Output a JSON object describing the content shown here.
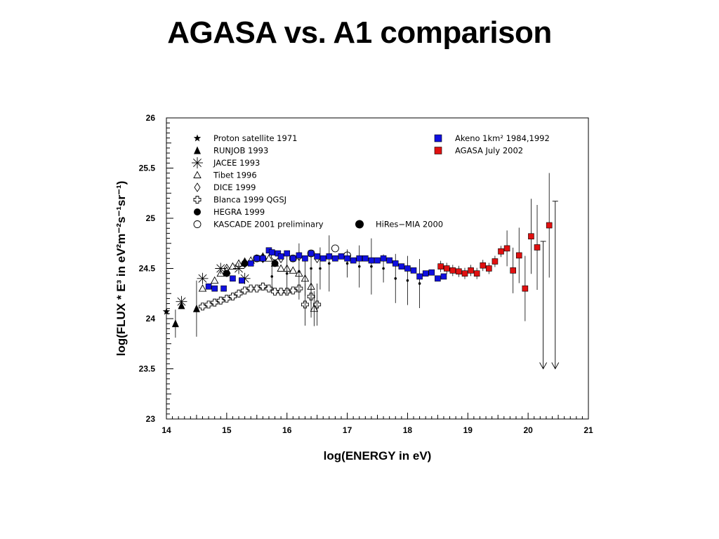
{
  "page": {
    "title": "AGASA vs. A1 comparison"
  },
  "chart_data": {
    "type": "scatter",
    "xlabel": "log(ENERGY in eV)",
    "ylabel": "log(FLUX * E³ in eV²m⁻²s⁻¹sr⁻¹)",
    "xlim": [
      14,
      21
    ],
    "ylim": [
      23,
      26
    ],
    "x_ticks": [
      "14",
      "15",
      "16",
      "17",
      "18",
      "19",
      "20",
      "21"
    ],
    "y_ticks": [
      "23",
      "23.5",
      "24",
      "24.5",
      "25",
      "25.5",
      "26"
    ],
    "grid": false,
    "legend_left": [
      {
        "marker": "star",
        "label": "Proton satellite 1971"
      },
      {
        "marker": "triangle-filled",
        "label": "RUNJOB 1993"
      },
      {
        "marker": "asterisk",
        "label": "JACEE 1993"
      },
      {
        "marker": "triangle-open",
        "label": "Tibet 1996"
      },
      {
        "marker": "diamond-open",
        "label": "DICE 1999"
      },
      {
        "marker": "cross-open",
        "label": "Blanca 1999 QGSJ"
      },
      {
        "marker": "circle-filled",
        "label": "HEGRA 1999"
      },
      {
        "marker": "circle-open",
        "label": "KASCADE 2001 preliminary"
      }
    ],
    "legend_right": [
      {
        "marker": "square",
        "color": "#1010e0",
        "label": "Akeno 1km²  1984,1992"
      },
      {
        "marker": "square",
        "color": "#e01010",
        "label": "AGASA July 2002"
      }
    ],
    "legend_extra": {
      "marker": "dot-filled",
      "label": "HiRes−MIA 2000"
    },
    "series": [
      {
        "name": "Proton satellite 1971",
        "marker": "star",
        "points": [
          [
            14.0,
            24.07
          ]
        ]
      },
      {
        "name": "RUNJOB 1993",
        "marker": "triangle-filled",
        "points": [
          [
            14.15,
            23.95,
            0.1
          ],
          [
            14.25,
            24.13,
            0.02
          ],
          [
            14.5,
            24.1,
            0.05
          ]
        ]
      },
      {
        "name": "JACEE 1993",
        "marker": "asterisk",
        "points": [
          [
            14.25,
            24.17
          ],
          [
            14.6,
            24.4
          ],
          [
            14.9,
            24.5
          ],
          [
            15.2,
            24.5
          ],
          [
            15.3,
            24.4
          ]
        ]
      },
      {
        "name": "Tibet 1996",
        "marker": "triangle-open",
        "points": [
          [
            14.6,
            24.3
          ],
          [
            14.8,
            24.38
          ],
          [
            14.9,
            24.45
          ],
          [
            15.0,
            24.48
          ],
          [
            15.1,
            24.52
          ],
          [
            15.2,
            24.55
          ],
          [
            15.3,
            24.57
          ],
          [
            15.4,
            24.58
          ],
          [
            15.5,
            24.6
          ],
          [
            15.6,
            24.62
          ],
          [
            15.7,
            24.6
          ],
          [
            15.8,
            24.55
          ],
          [
            15.9,
            24.5
          ],
          [
            16.0,
            24.5
          ],
          [
            16.1,
            24.48
          ],
          [
            16.2,
            24.45
          ],
          [
            16.3,
            24.4
          ],
          [
            16.4,
            24.32
          ],
          [
            16.45,
            24.1
          ]
        ]
      },
      {
        "name": "DICE 1999",
        "marker": "diamond-open",
        "points": [
          [
            15.0,
            24.5
          ],
          [
            15.3,
            24.55
          ],
          [
            15.6,
            24.6
          ],
          [
            15.9,
            24.6
          ],
          [
            16.2,
            24.62
          ],
          [
            16.5,
            24.6
          ]
        ]
      },
      {
        "name": "Blanca 1999 QGSJ",
        "marker": "cross-open",
        "points": [
          [
            14.6,
            24.12
          ],
          [
            14.7,
            24.14
          ],
          [
            14.8,
            24.16
          ],
          [
            14.9,
            24.18
          ],
          [
            15.0,
            24.2
          ],
          [
            15.1,
            24.22
          ],
          [
            15.2,
            24.25
          ],
          [
            15.3,
            24.28
          ],
          [
            15.4,
            24.3
          ],
          [
            15.5,
            24.3
          ],
          [
            15.6,
            24.32
          ],
          [
            15.7,
            24.3
          ],
          [
            15.8,
            24.27
          ],
          [
            15.9,
            24.27
          ],
          [
            16.0,
            24.27
          ],
          [
            16.1,
            24.28
          ],
          [
            16.2,
            24.3
          ],
          [
            16.3,
            24.14
          ],
          [
            16.4,
            24.22
          ],
          [
            16.5,
            24.14
          ]
        ]
      },
      {
        "name": "HEGRA 1999",
        "marker": "circle-filled",
        "points": [
          [
            15.0,
            24.45
          ],
          [
            15.3,
            24.55
          ],
          [
            15.6,
            24.6
          ],
          [
            15.8,
            24.55
          ]
        ]
      },
      {
        "name": "KASCADE 2001 preliminary",
        "marker": "circle-open",
        "points": [
          [
            15.5,
            24.6
          ],
          [
            15.8,
            24.62
          ],
          [
            16.1,
            24.6
          ],
          [
            16.4,
            24.65
          ],
          [
            16.8,
            24.7
          ],
          [
            17.0,
            24.63
          ]
        ]
      },
      {
        "name": "HiRes−MIA 2000",
        "marker": "dot-filled",
        "points": [
          [
            15.75,
            24.42
          ],
          [
            16.0,
            24.45
          ],
          [
            16.2,
            24.47
          ],
          [
            16.4,
            24.5
          ],
          [
            16.55,
            24.5
          ],
          [
            16.7,
            24.55
          ],
          [
            17.0,
            24.55
          ],
          [
            17.2,
            24.52
          ],
          [
            17.4,
            24.52
          ],
          [
            17.6,
            24.5
          ],
          [
            17.8,
            24.4
          ],
          [
            18.0,
            24.38
          ],
          [
            18.2,
            24.35
          ]
        ]
      },
      {
        "name": "Akeno 1km²  1984,1992",
        "marker": "square",
        "color": "#1010e0",
        "points": [
          [
            14.7,
            24.32
          ],
          [
            14.8,
            24.3
          ],
          [
            14.95,
            24.3
          ],
          [
            15.1,
            24.4
          ],
          [
            15.25,
            24.38
          ],
          [
            15.4,
            24.55
          ],
          [
            15.5,
            24.6
          ],
          [
            15.6,
            24.6
          ],
          [
            15.7,
            24.68
          ],
          [
            15.75,
            24.66
          ],
          [
            15.85,
            24.65
          ],
          [
            15.9,
            24.62
          ],
          [
            16.0,
            24.65
          ],
          [
            16.1,
            24.6
          ],
          [
            16.2,
            24.63
          ],
          [
            16.3,
            24.6
          ],
          [
            16.4,
            24.65
          ],
          [
            16.5,
            24.62
          ],
          [
            16.6,
            24.6
          ],
          [
            16.7,
            24.62
          ],
          [
            16.8,
            24.6
          ],
          [
            16.9,
            24.62
          ],
          [
            17.0,
            24.6
          ],
          [
            17.1,
            24.58
          ],
          [
            17.2,
            24.6
          ],
          [
            17.3,
            24.6
          ],
          [
            17.4,
            24.58
          ],
          [
            17.5,
            24.58
          ],
          [
            17.6,
            24.6
          ],
          [
            17.7,
            24.58
          ],
          [
            17.8,
            24.55
          ],
          [
            17.9,
            24.52
          ],
          [
            18.0,
            24.5
          ],
          [
            18.1,
            24.48
          ],
          [
            18.2,
            24.42
          ],
          [
            18.3,
            24.45
          ],
          [
            18.4,
            24.46
          ],
          [
            18.5,
            24.4
          ],
          [
            18.6,
            24.42
          ]
        ]
      },
      {
        "name": "AGASA July 2002",
        "marker": "square",
        "color": "#e01010",
        "points": [
          [
            18.55,
            24.52
          ],
          [
            18.65,
            24.5
          ],
          [
            18.75,
            24.48
          ],
          [
            18.85,
            24.47
          ],
          [
            18.95,
            24.45
          ],
          [
            19.05,
            24.48
          ],
          [
            19.15,
            24.45
          ],
          [
            19.25,
            24.53
          ],
          [
            19.35,
            24.5
          ],
          [
            19.45,
            24.57
          ],
          [
            19.55,
            24.67
          ],
          [
            19.65,
            24.7
          ],
          [
            19.75,
            24.48
          ],
          [
            19.85,
            24.63
          ],
          [
            19.95,
            24.3
          ],
          [
            20.05,
            24.82
          ],
          [
            20.15,
            24.71
          ],
          [
            20.35,
            24.93
          ]
        ]
      }
    ],
    "upper_limits": [
      [
        20.25,
        23.5
      ],
      [
        20.45,
        23.5
      ]
    ]
  }
}
